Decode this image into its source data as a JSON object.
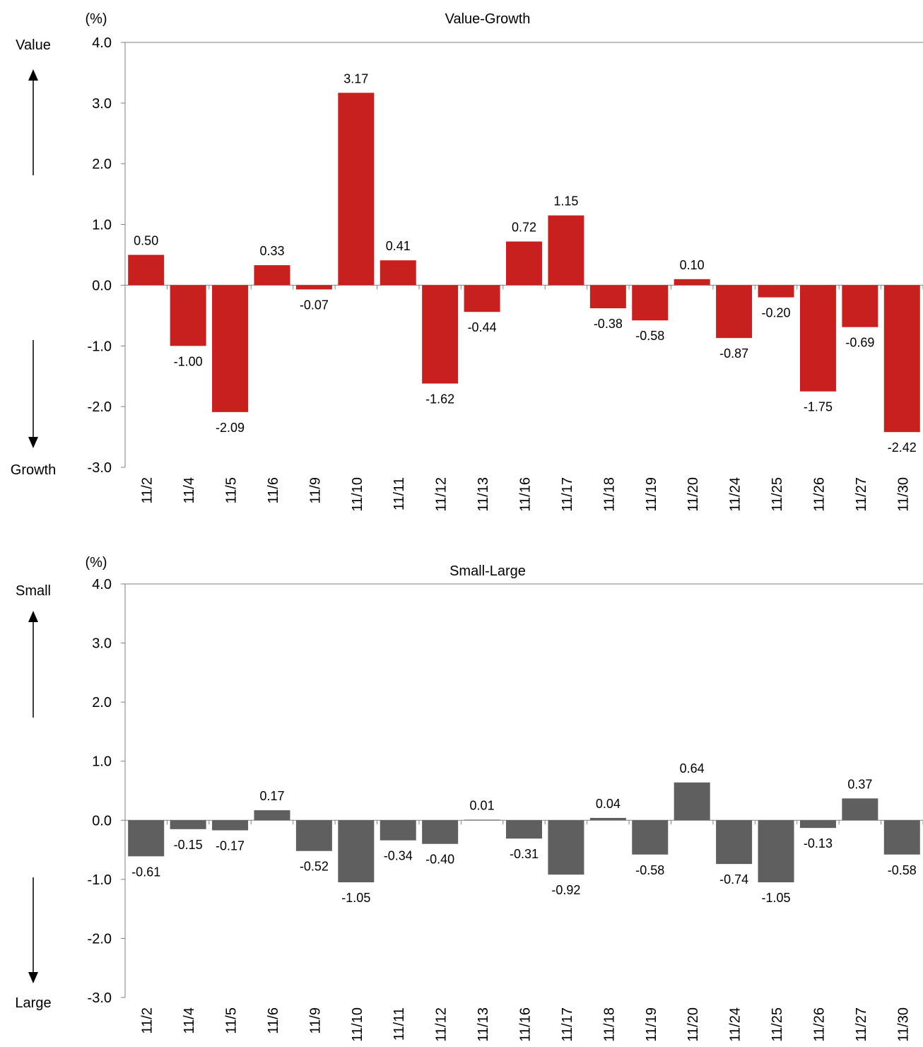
{
  "chart_data": [
    {
      "type": "bar",
      "title": "Value-Growth",
      "unit": "(%)",
      "upper_label": "Value",
      "lower_label": "Growth",
      "bar_color": "#c8201e",
      "ylim": [
        -3.0,
        4.0
      ],
      "yticks": [
        "4.0",
        "3.0",
        "2.0",
        "1.0",
        "0.0",
        "-1.0",
        "-2.0",
        "-3.0"
      ],
      "categories": [
        "11/2",
        "11/4",
        "11/5",
        "11/6",
        "11/9",
        "11/10",
        "11/11",
        "11/12",
        "11/13",
        "11/16",
        "11/17",
        "11/18",
        "11/19",
        "11/20",
        "11/24",
        "11/25",
        "11/26",
        "11/27",
        "11/30"
      ],
      "values": [
        0.5,
        -1.0,
        -2.09,
        0.33,
        -0.07,
        3.17,
        0.41,
        -1.62,
        -0.44,
        0.72,
        1.15,
        -0.38,
        -0.58,
        0.1,
        -0.87,
        -0.2,
        -1.75,
        -0.69,
        -2.42
      ],
      "value_labels": [
        "0.50",
        "-1.00",
        "-2.09",
        "0.33",
        "-0.07",
        "3.17",
        "0.41",
        "-1.62",
        "-0.44",
        "0.72",
        "1.15",
        "-0.38",
        "-0.58",
        "0.10",
        "-0.87",
        "-0.20",
        "-1.75",
        "-0.69",
        "-2.42"
      ],
      "legend": "none",
      "grid": false
    },
    {
      "type": "bar",
      "title": "Small-Large",
      "unit": "(%)",
      "upper_label": "Small",
      "lower_label": "Large",
      "bar_color": "#5f5f5f",
      "ylim": [
        -3.0,
        4.0
      ],
      "yticks": [
        "4.0",
        "3.0",
        "2.0",
        "1.0",
        "0.0",
        "-1.0",
        "-2.0",
        "-3.0"
      ],
      "categories": [
        "11/2",
        "11/4",
        "11/5",
        "11/6",
        "11/9",
        "11/10",
        "11/11",
        "11/12",
        "11/13",
        "11/16",
        "11/17",
        "11/18",
        "11/19",
        "11/20",
        "11/24",
        "11/25",
        "11/26",
        "11/27",
        "11/30"
      ],
      "values": [
        -0.61,
        -0.15,
        -0.17,
        0.17,
        -0.52,
        -1.05,
        -0.34,
        -0.4,
        0.01,
        -0.31,
        -0.92,
        0.04,
        -0.58,
        0.64,
        -0.74,
        -1.05,
        -0.13,
        0.37,
        -0.58
      ],
      "value_labels": [
        "-0.61",
        "-0.15",
        "-0.17",
        "0.17",
        "-0.52",
        "-1.05",
        "-0.34",
        "-0.40",
        "0.01",
        "-0.31",
        "-0.92",
        "0.04",
        "-0.58",
        "0.64",
        "-0.74",
        "-1.05",
        "-0.13",
        "0.37",
        "-0.58"
      ],
      "legend": "none",
      "grid": false
    }
  ]
}
